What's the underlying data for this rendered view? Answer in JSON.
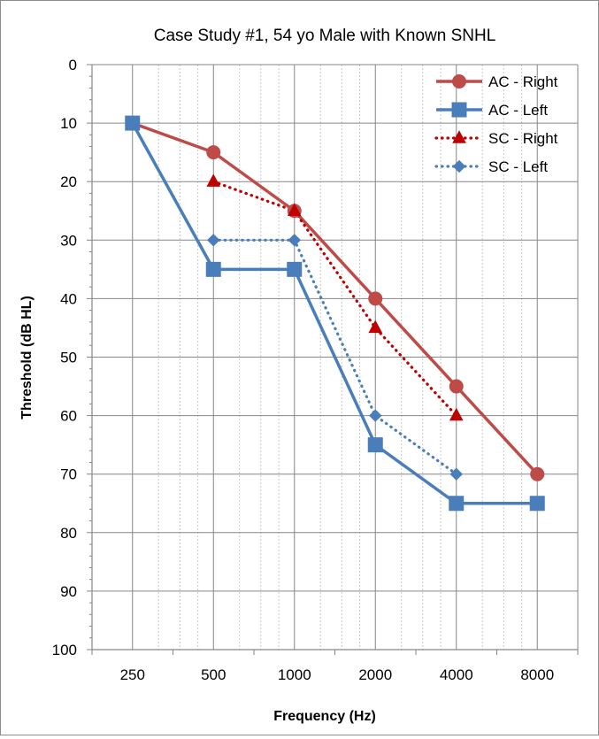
{
  "chart_data": {
    "type": "line",
    "title": "Case Study #1, 54 yo Male with Known SNHL",
    "xlabel": "Frequency (Hz)",
    "ylabel": "Threshold (dB HL)",
    "categories": [
      "250",
      "500",
      "1000",
      "2000",
      "4000",
      "8000"
    ],
    "ylim": [
      0,
      100
    ],
    "y_inverted": true,
    "y_ticks": [
      "0",
      "10",
      "20",
      "30",
      "40",
      "50",
      "60",
      "70",
      "80",
      "90",
      "100"
    ],
    "grid": true,
    "legend_position": "top-right",
    "series": [
      {
        "name": "AC - Right",
        "values": [
          10,
          15,
          25,
          40,
          55,
          70
        ],
        "color": "#be4b48",
        "marker": "circle",
        "line_style": "solid"
      },
      {
        "name": "AC - Left",
        "values": [
          10,
          35,
          35,
          65,
          75,
          75
        ],
        "color": "#4a7ebb",
        "marker": "square",
        "line_style": "solid"
      },
      {
        "name": "SC - Right",
        "values": [
          null,
          20,
          25,
          45,
          60,
          null
        ],
        "color": "#c00000",
        "marker": "triangle",
        "line_style": "dotted"
      },
      {
        "name": "SC - Left",
        "values": [
          null,
          30,
          30,
          60,
          70,
          null
        ],
        "color": "#4a7ebb",
        "marker": "diamond",
        "line_style": "dotted"
      }
    ]
  }
}
